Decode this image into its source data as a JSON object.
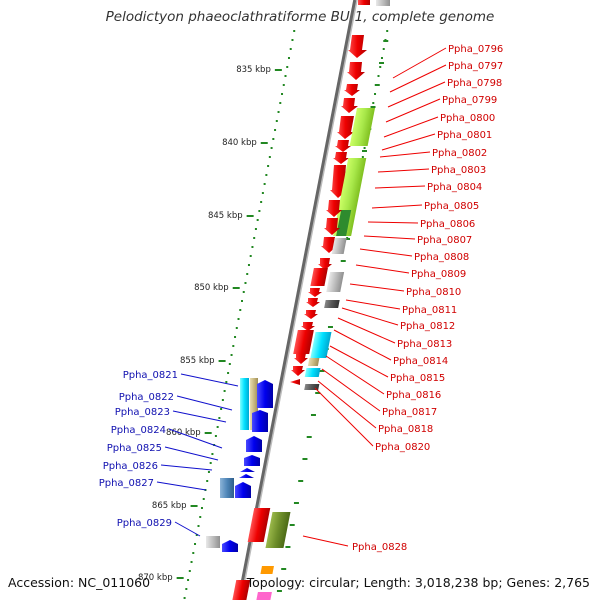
{
  "title": "Pelodictyon phaeoclathratiforme BU-1, complete genome",
  "footer": {
    "accession": "Accession: NC_011060",
    "summary": "Topology: circular; Length: 3,018,238 bp; Genes: 2,765"
  },
  "ticks": [
    {
      "label": "835 kbp"
    },
    {
      "label": "840 kbp"
    },
    {
      "label": "845 kbp"
    },
    {
      "label": "850 kbp"
    },
    {
      "label": "855 kbp"
    },
    {
      "label": "860 kbp"
    },
    {
      "label": "865 kbp"
    },
    {
      "label": "870 kbp"
    }
  ],
  "right_labels": [
    "Ppha_0796",
    "Ppha_0797",
    "Ppha_0798",
    "Ppha_0799",
    "Ppha_0800",
    "Ppha_0801",
    "Ppha_0802",
    "Ppha_0803",
    "Ppha_0804",
    "Ppha_0805",
    "Ppha_0806",
    "Ppha_0807",
    "Ppha_0808",
    "Ppha_0809",
    "Ppha_0810",
    "Ppha_0811",
    "Ppha_0812",
    "Ppha_0813",
    "Ppha_0814",
    "Ppha_0815",
    "Ppha_0816",
    "Ppha_0817",
    "Ppha_0818",
    "Ppha_0820"
  ],
  "left_labels": [
    "Ppha_0821",
    "Ppha_0822",
    "Ppha_0823",
    "Ppha_0824",
    "Ppha_0825",
    "Ppha_0826",
    "Ppha_0827",
    "Ppha_0829"
  ],
  "bottom_right_label": "Ppha_0828",
  "colors": {
    "forward_gene": "#ee0000",
    "reverse_gene": "#0000ee",
    "label_red": "#d00000",
    "label_blue": "#1010b0",
    "backbone": "#888888",
    "gc_dots": "#228822"
  }
}
